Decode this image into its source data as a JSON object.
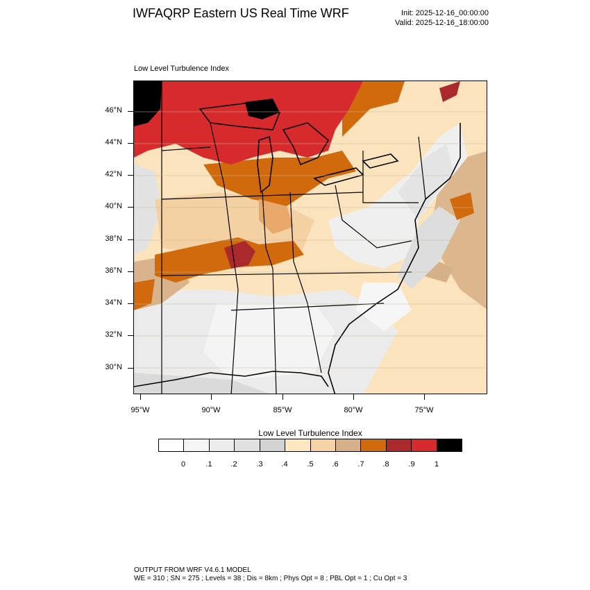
{
  "header": {
    "title": "IWFAQRP Eastern US Real Time WRF",
    "init": "Init: 2025-12-16_00:00:00",
    "valid": "Valid: 2025-12-16_18:00:00"
  },
  "panel": {
    "title": "Low Level Turbulence Index"
  },
  "map": {
    "lat_labels": [
      "46°N",
      "44°N",
      "42°N",
      "40°N",
      "38°N",
      "36°N",
      "34°N",
      "32°N",
      "30°N"
    ],
    "lon_labels": [
      "95°W",
      "90°W",
      "85°W",
      "80°W",
      "75°W"
    ],
    "regions": [
      {
        "name": "upper-great-lakes",
        "level": 0.9
      },
      {
        "name": "lake-michigan-indiana",
        "level": 0.7
      },
      {
        "name": "illinois-kentucky-band",
        "level": 0.8
      },
      {
        "name": "ohio-valley",
        "level": 0.5
      },
      {
        "name": "southeast",
        "level": 0.2
      },
      {
        "name": "atlantic-offshore",
        "level": 0.4
      },
      {
        "name": "new-york-appalachians",
        "level": 0.1
      }
    ]
  },
  "legend": {
    "title": "Low Level Turbulence Index",
    "colors": [
      "#ffffff",
      "#f5f5f5",
      "#ececec",
      "#e0e0e0",
      "#d2d2d2",
      "#fde7bf",
      "#f6d3a6",
      "#d6b089",
      "#d06a0c",
      "#a9292c",
      "#d62a2d",
      "#000000"
    ],
    "labels": [
      "0",
      ".1",
      ".2",
      ".3",
      ".4",
      ".5",
      ".6",
      ".7",
      ".8",
      ".9",
      "1"
    ]
  },
  "footer": {
    "line1": "OUTPUT FROM WRF V4.6.1 MODEL",
    "line2": "WE = 310 ; SN = 275 ; Levels = 38 ; Dis = 8km ; Phys Opt = 8 ; PBL Opt = 1 ; Cu Opt = 3"
  }
}
